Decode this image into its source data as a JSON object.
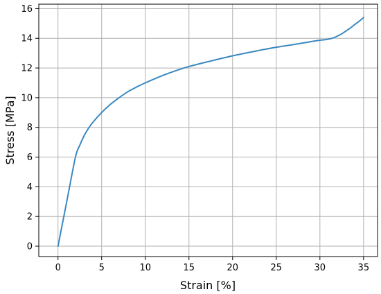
{
  "chart_data": {
    "type": "line",
    "title": "",
    "xlabel": "Strain [%]",
    "ylabel": "Stress [MPa]",
    "xlim": [
      -2.2,
      36.6
    ],
    "ylim": [
      -0.7,
      16.3
    ],
    "xticks": [
      0,
      5,
      10,
      15,
      20,
      25,
      30,
      35
    ],
    "yticks": [
      0,
      2,
      4,
      6,
      8,
      10,
      12,
      14,
      16
    ],
    "grid": true,
    "legend": "none",
    "line_color": "#3a88c0",
    "grid_color": "#b0b0b0",
    "series": [
      {
        "x": [
          0,
          1,
          2,
          2.5,
          3,
          3.5,
          4,
          5,
          6,
          7,
          8,
          9,
          10,
          12,
          14,
          15,
          17,
          20,
          23,
          25,
          27,
          29,
          30,
          30.5,
          31,
          31.5,
          32,
          32.5,
          33,
          33.5,
          34,
          34.5,
          35
        ],
        "y": [
          0,
          3.0,
          6.0,
          6.8,
          7.45,
          7.95,
          8.35,
          9.0,
          9.55,
          10.0,
          10.4,
          10.72,
          11.0,
          11.5,
          11.92,
          12.1,
          12.4,
          12.82,
          13.18,
          13.4,
          13.58,
          13.78,
          13.87,
          13.9,
          13.95,
          14.02,
          14.15,
          14.3,
          14.5,
          14.7,
          14.93,
          15.15,
          15.4
        ]
      }
    ]
  }
}
